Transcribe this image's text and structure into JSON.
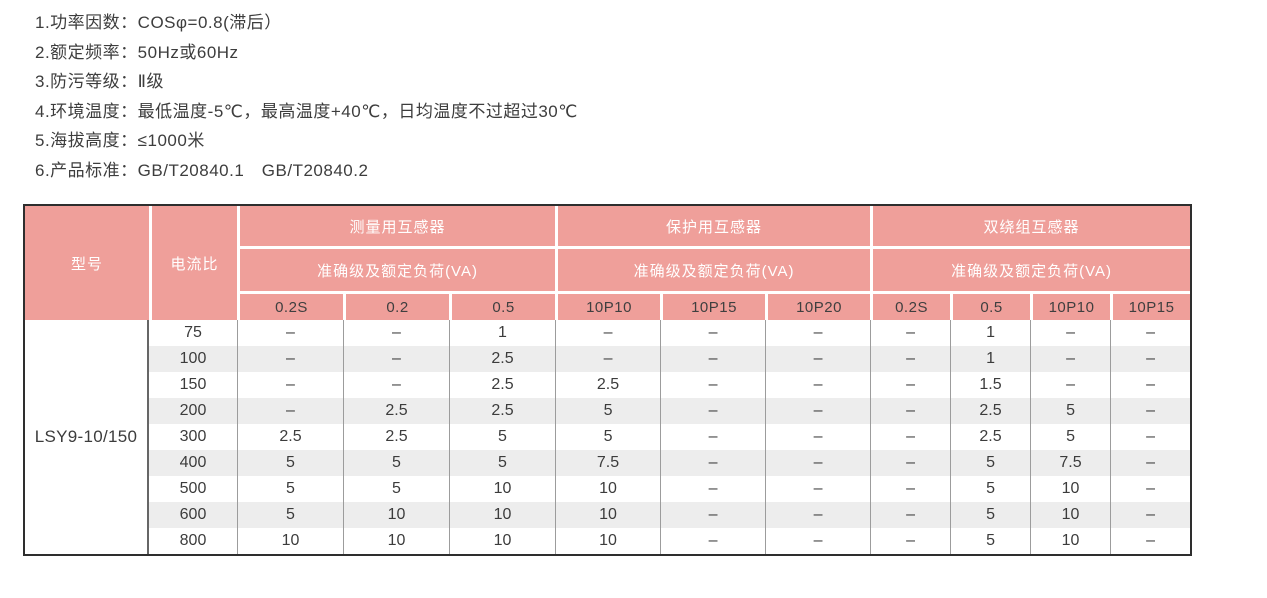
{
  "notes": {
    "lines": [
      "1.功率因数：COSφ=0.8(滞后）",
      "2.额定频率：50Hz或60Hz",
      "3.防污等级：Ⅱ级",
      "4.环境温度：最低温度-5℃，最高温度+40℃，日均温度不过超过30℃",
      "5.海拔高度：≤1000米",
      "6.产品标准：GB/T20840.1　GB/T20840.2"
    ]
  },
  "table": {
    "col_model": "型号",
    "col_ratio": "电流比",
    "groups": [
      {
        "title": "测量用互感器",
        "subtitle": "准确级及额定负荷(VA)",
        "classes": [
          "0.2S",
          "0.2",
          "0.5"
        ]
      },
      {
        "title": "保护用互感器",
        "subtitle": "准确级及额定负荷(VA)",
        "classes": [
          "10P10",
          "10P15",
          "10P20"
        ]
      },
      {
        "title": "双绕组互感器",
        "subtitle": "准确级及额定负荷(VA)",
        "classes": [
          "0.2S",
          "0.5",
          "10P10",
          "10P15"
        ]
      }
    ],
    "model": "LSY9-10/150",
    "rows": [
      {
        "ratio": "75",
        "values": [
          "–",
          "–",
          "1",
          "–",
          "–",
          "–",
          "–",
          "1",
          "–",
          "–"
        ]
      },
      {
        "ratio": "100",
        "values": [
          "–",
          "–",
          "2.5",
          "–",
          "–",
          "–",
          "–",
          "1",
          "–",
          "–"
        ]
      },
      {
        "ratio": "150",
        "values": [
          "–",
          "–",
          "2.5",
          "2.5",
          "–",
          "–",
          "–",
          "1.5",
          "–",
          "–"
        ]
      },
      {
        "ratio": "200",
        "values": [
          "–",
          "2.5",
          "2.5",
          "5",
          "–",
          "–",
          "–",
          "2.5",
          "5",
          "–"
        ]
      },
      {
        "ratio": "300",
        "values": [
          "2.5",
          "2.5",
          "5",
          "5",
          "–",
          "–",
          "–",
          "2.5",
          "5",
          "–"
        ]
      },
      {
        "ratio": "400",
        "values": [
          "5",
          "5",
          "5",
          "7.5",
          "–",
          "–",
          "–",
          "5",
          "7.5",
          "–"
        ]
      },
      {
        "ratio": "500",
        "values": [
          "5",
          "5",
          "10",
          "10",
          "–",
          "–",
          "–",
          "5",
          "10",
          "–"
        ]
      },
      {
        "ratio": "600",
        "values": [
          "5",
          "10",
          "10",
          "10",
          "–",
          "–",
          "–",
          "5",
          "10",
          "–"
        ]
      },
      {
        "ratio": "800",
        "values": [
          "10",
          "10",
          "10",
          "10",
          "–",
          "–",
          "–",
          "5",
          "10",
          "–"
        ]
      }
    ]
  },
  "colors": {
    "header_bg": "#ef9f9a",
    "header_text": "#ffffff",
    "class_row_text": "#3f3f3f",
    "stripe_bg": "#ededed",
    "outer_border": "#2e2e2e",
    "body_text": "#3c3c3c"
  }
}
